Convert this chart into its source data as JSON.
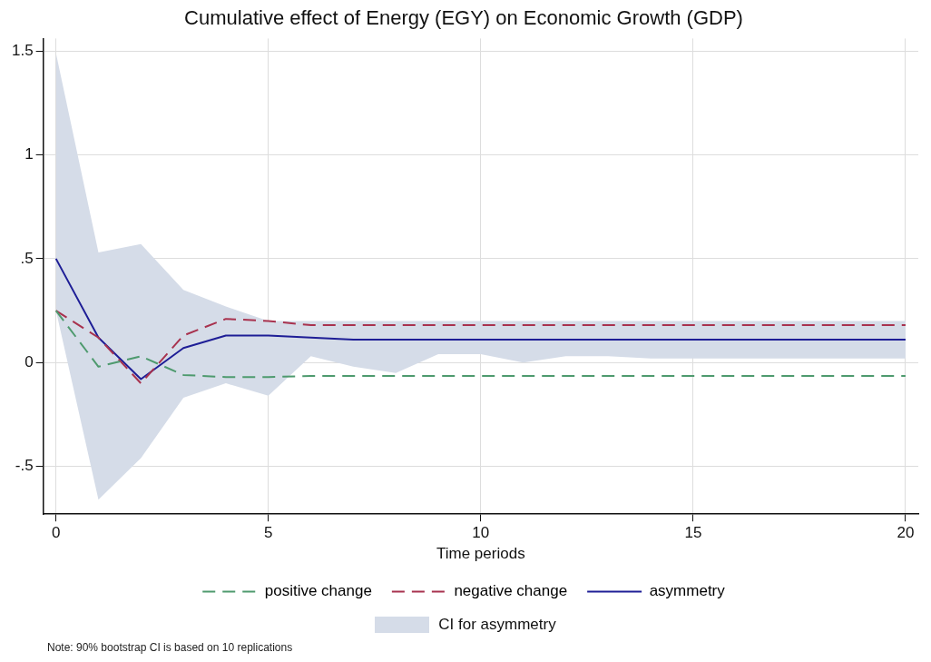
{
  "chart_data": {
    "type": "line",
    "title": "Cumulative effect of Energy (EGY) on Economic Growth (GDP)",
    "xlabel": "Time periods",
    "x": [
      0,
      1,
      2,
      3,
      4,
      5,
      6,
      7,
      8,
      9,
      10,
      11,
      12,
      13,
      14,
      15,
      16,
      17,
      18,
      19,
      20
    ],
    "xlim": [
      -0.3,
      20.3
    ],
    "xticks": [
      0,
      5,
      10,
      15,
      20
    ],
    "ylim": [
      -0.73,
      1.56
    ],
    "yticks": [
      {
        "value": -0.5,
        "label": "-.5"
      },
      0,
      {
        "value": 0.5,
        "label": ".5"
      },
      1,
      1.5
    ],
    "grid": true,
    "legend": "bottom",
    "marker": "none",
    "series": [
      {
        "name": "positive change",
        "color": "#4e9a6e",
        "line_style": "dashed",
        "values": [
          0.25,
          -0.02,
          0.03,
          -0.06,
          -0.07,
          -0.07,
          -0.065,
          -0.065,
          -0.065,
          -0.065,
          -0.065,
          -0.065,
          -0.065,
          -0.065,
          -0.065,
          -0.065,
          -0.065,
          -0.065,
          -0.065,
          -0.065,
          -0.065
        ]
      },
      {
        "name": "negative change",
        "color": "#a8324e",
        "line_style": "dashed",
        "values": [
          0.25,
          0.12,
          -0.1,
          0.13,
          0.21,
          0.2,
          0.18,
          0.18,
          0.18,
          0.18,
          0.18,
          0.18,
          0.18,
          0.18,
          0.18,
          0.18,
          0.18,
          0.18,
          0.18,
          0.18,
          0.18
        ]
      },
      {
        "name": "asymmetry",
        "color": "#1e1e96",
        "line_style": "solid",
        "values": [
          0.5,
          0.12,
          -0.08,
          0.07,
          0.13,
          0.13,
          0.12,
          0.11,
          0.11,
          0.11,
          0.11,
          0.11,
          0.11,
          0.11,
          0.11,
          0.11,
          0.11,
          0.11,
          0.11,
          0.11,
          0.11
        ],
        "lower": [
          0.25,
          -0.66,
          -0.46,
          -0.17,
          -0.1,
          -0.16,
          0.03,
          -0.02,
          -0.05,
          0.04,
          0.04,
          0,
          0.03,
          0.03,
          0.02,
          0.02,
          0.02,
          0.02,
          0.02,
          0.02,
          0.02
        ],
        "upper": [
          1.49,
          0.53,
          0.57,
          0.35,
          0.27,
          0.2,
          0.2,
          0.2,
          0.2,
          0.2,
          0.2,
          0.2,
          0.2,
          0.2,
          0.2,
          0.2,
          0.2,
          0.2,
          0.2,
          0.2,
          0.2
        ]
      }
    ],
    "annotations": [
      "CI for asymmetry",
      "Note: 90% bootstrap CI is based on 10 replications"
    ]
  }
}
